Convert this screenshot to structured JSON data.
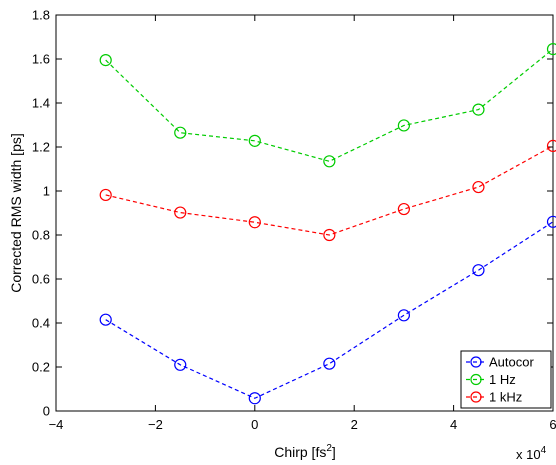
{
  "chart_data": {
    "type": "line",
    "xlabel": "Chirp [fs",
    "xlabel_sup": "2",
    "xlabel_suffix": "]",
    "ylabel": "Corrected RMS width [ps]",
    "x_multiplier_base": "x 10",
    "x_multiplier_exp": "4",
    "xlim": [
      -4,
      6
    ],
    "ylim": [
      0,
      1.8
    ],
    "x_ticks": [
      -4,
      -2,
      0,
      2,
      4,
      6
    ],
    "x_tick_labels": [
      "−4",
      "−2",
      "0",
      "2",
      "4",
      "6"
    ],
    "y_ticks": [
      0,
      0.2,
      0.4,
      0.6,
      0.8,
      1,
      1.2,
      1.4,
      1.6,
      1.8
    ],
    "y_tick_labels": [
      "0",
      "0.2",
      "0.4",
      "0.6",
      "0.8",
      "1",
      "1.2",
      "1.4",
      "1.6",
      "1.8"
    ],
    "grid": false,
    "legend_position": "bottom-right",
    "x": [
      -3,
      -1.5,
      0,
      1.5,
      3,
      4.5,
      6
    ],
    "series": [
      {
        "name": "Autocor",
        "color": "#0000ff",
        "values": [
          0.415,
          0.21,
          0.058,
          0.215,
          0.435,
          0.64,
          0.86
        ]
      },
      {
        "name": "1 Hz",
        "color": "#00cc00",
        "values": [
          1.595,
          1.265,
          1.228,
          1.135,
          1.298,
          1.37,
          1.645
        ]
      },
      {
        "name": "1 kHz",
        "color": "#ff0000",
        "values": [
          0.982,
          0.902,
          0.858,
          0.8,
          0.918,
          1.018,
          1.205
        ]
      }
    ]
  }
}
